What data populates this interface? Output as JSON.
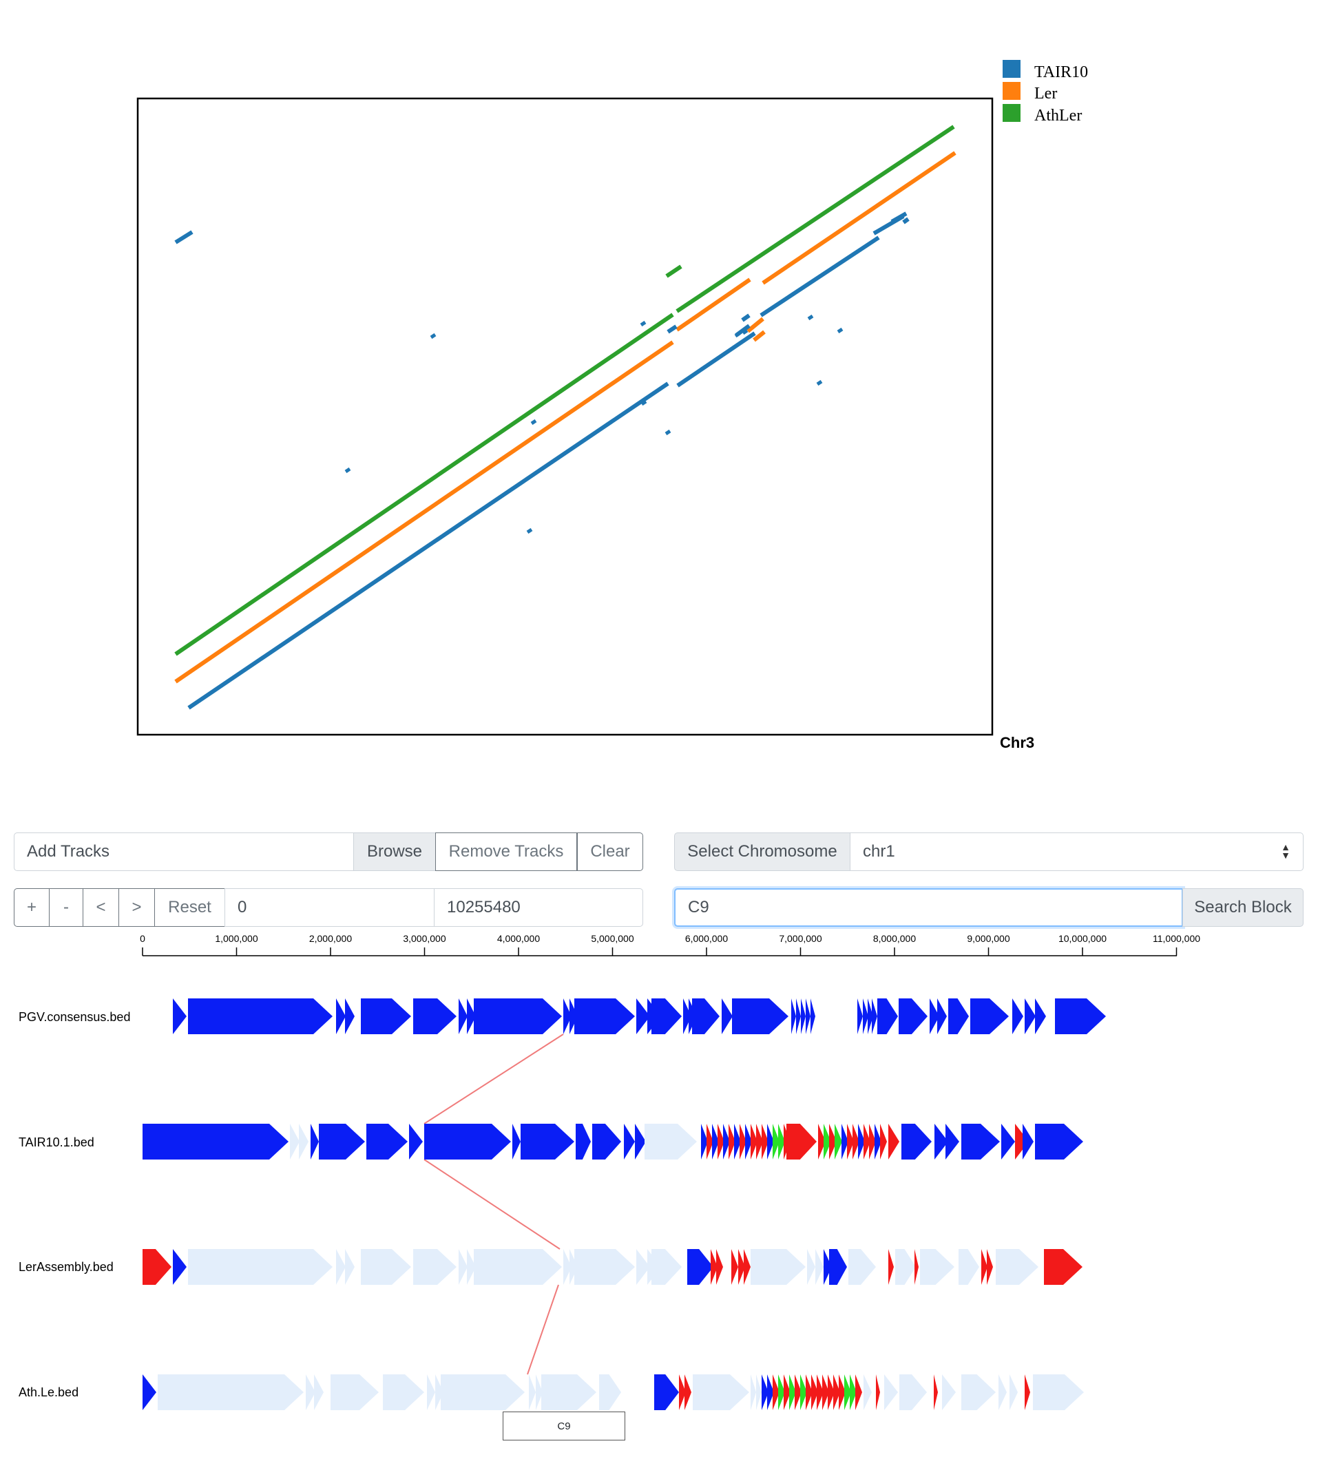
{
  "legend": {
    "items": [
      {
        "label": "TAIR10",
        "color": "#1f77b4"
      },
      {
        "label": "Ler",
        "color": "#ff7f0e"
      },
      {
        "label": "AthLer",
        "color": "#2ca02c"
      }
    ]
  },
  "dotplot": {
    "x_axis_label": "Chr3",
    "series_colors": {
      "TAIR10": "#1f77b4",
      "Ler": "#ff7f0e",
      "AthLer": "#2ca02c"
    }
  },
  "controls": {
    "add_tracks_placeholder": "Add Tracks",
    "browse_label": "Browse",
    "remove_tracks_label": "Remove Tracks",
    "clear_label": "Clear",
    "select_chromosome_label": "Select Chromosome",
    "chromosome_value": "chr1",
    "zoom_in_label": "+",
    "zoom_out_label": "-",
    "pan_left_label": "<",
    "pan_right_label": ">",
    "reset_label": "Reset",
    "range_start": "0",
    "range_end": "10255480",
    "search_value": "C9",
    "search_block_label": "Search Block"
  },
  "ruler": {
    "ticks": [
      "0",
      "1,000,000",
      "2,000,000",
      "3,000,000",
      "4,000,000",
      "5,000,000",
      "6,000,000",
      "7,000,000",
      "8,000,000",
      "9,000,000",
      "10,000,000",
      "11,000,000"
    ]
  },
  "tracks": [
    {
      "name": "PGV.consensus.bed"
    },
    {
      "name": "TAIR10.1.bed"
    },
    {
      "name": "LerAssembly.bed"
    },
    {
      "name": "Ath.Le.bed"
    }
  ],
  "track_colors": {
    "strong": "#0a1ef5",
    "faded": "#e3eefb",
    "red": "#f21a1a",
    "green": "#28e028"
  },
  "tooltip": {
    "label": "C9"
  }
}
